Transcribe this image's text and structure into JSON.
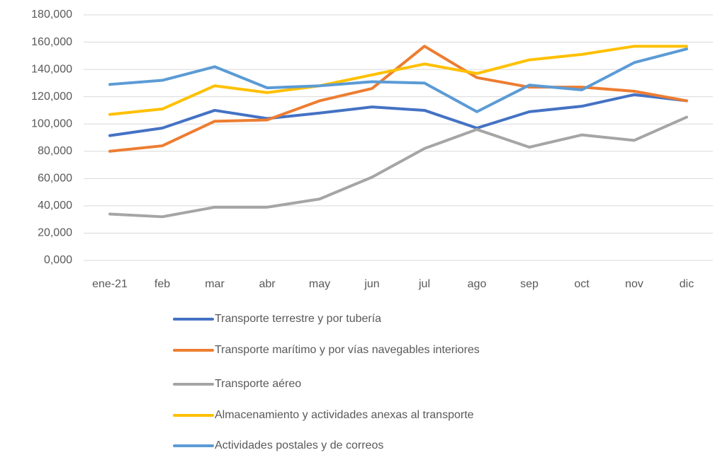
{
  "chart_data": {
    "type": "line",
    "categories": [
      "ene-21",
      "feb",
      "mar",
      "abr",
      "may",
      "jun",
      "jul",
      "ago",
      "sep",
      "oct",
      "nov",
      "dic"
    ],
    "series": [
      {
        "name": "Transporte terrestre y por tubería",
        "color": "#4472c4",
        "values": [
          91500,
          97000,
          110000,
          104000,
          108000,
          112500,
          110000,
          97000,
          109000,
          113000,
          121500,
          117000
        ]
      },
      {
        "name": "Transporte marítimo y por vías navegables interiores",
        "color": "#ed7d31",
        "values": [
          80000,
          84000,
          102000,
          103000,
          117000,
          126000,
          157000,
          134000,
          127000,
          127000,
          124000,
          117000
        ]
      },
      {
        "name": "Transporte aéreo",
        "color": "#a5a5a5",
        "values": [
          34000,
          32000,
          39000,
          39000,
          45000,
          61000,
          82000,
          96000,
          83000,
          92000,
          88000,
          105000
        ]
      },
      {
        "name": "Almacenamiento y actividades anexas al transporte",
        "color": "#ffc000",
        "values": [
          107000,
          111000,
          128000,
          123000,
          128000,
          136000,
          144000,
          137000,
          147000,
          151000,
          157000,
          157000
        ]
      },
      {
        "name": "Actividades postales y de correos",
        "color": "#5b9bd5",
        "values": [
          129000,
          132000,
          142000,
          126500,
          128000,
          131000,
          130000,
          109000,
          128500,
          125000,
          145000,
          155000
        ]
      }
    ],
    "ylim": [
      0,
      180000
    ],
    "yticks": [
      {
        "value": 0,
        "label": "0,000"
      },
      {
        "value": 20000,
        "label": "20,000"
      },
      {
        "value": 40000,
        "label": "40,000"
      },
      {
        "value": 60000,
        "label": "60,000"
      },
      {
        "value": 80000,
        "label": "80,000"
      },
      {
        "value": 100000,
        "label": "100,000"
      },
      {
        "value": 120000,
        "label": "120,000"
      },
      {
        "value": 140000,
        "label": "140,000"
      },
      {
        "value": 160000,
        "label": "160,000"
      },
      {
        "value": 180000,
        "label": "180,000"
      }
    ],
    "grid": true,
    "legend": "bottom"
  }
}
